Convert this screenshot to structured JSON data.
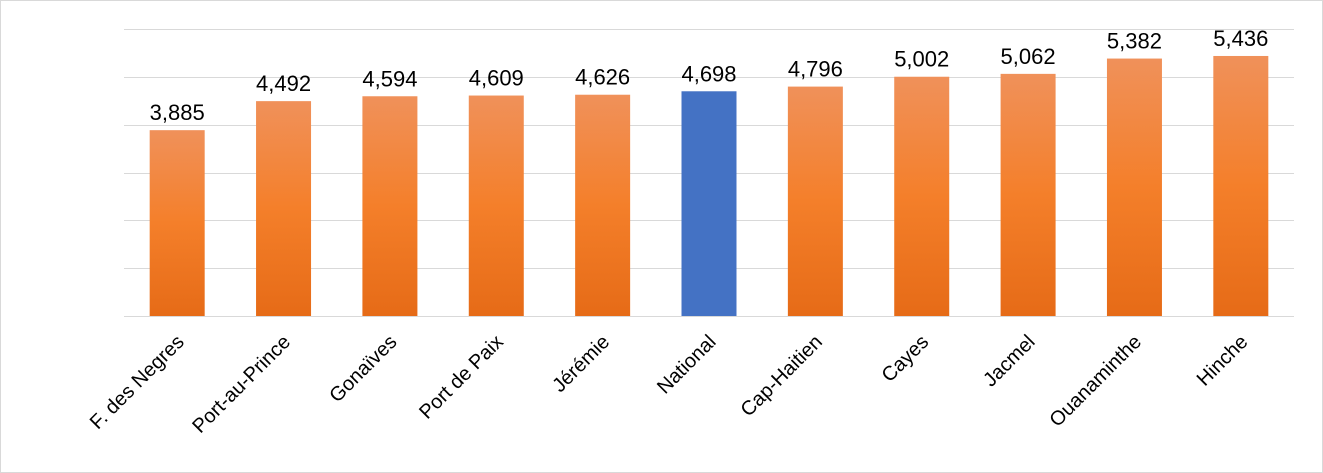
{
  "chart_data": {
    "type": "bar",
    "title": "",
    "xlabel": "",
    "ylabel": "",
    "categories": [
      "F. des Negres",
      "Port-au-Prince",
      "Gonaïves",
      "Port de Paix",
      "Jérémie",
      "National",
      "Cap-Haitien",
      "Cayes",
      "Jacmel",
      "Ouanaminthe",
      "Hinche"
    ],
    "values": [
      3885,
      4492,
      4594,
      4609,
      4626,
      4698,
      4796,
      5002,
      5062,
      5382,
      5436
    ],
    "value_labels": [
      "3,885",
      "4,492",
      "4,594",
      "4,609",
      "4,626",
      "4,698",
      "4,796",
      "5,002",
      "5,062",
      "5,382",
      "5,436"
    ],
    "ylim": [
      0,
      6000
    ],
    "gridlines": true,
    "grid_step": 1000,
    "legend": "none",
    "colors": {
      "default_bar_top": "#f0915a",
      "default_bar_mid": "#f47f2a",
      "default_bar_bottom": "#e66b17",
      "highlight_bar": "#4472c4"
    },
    "highlight_category": "National"
  }
}
